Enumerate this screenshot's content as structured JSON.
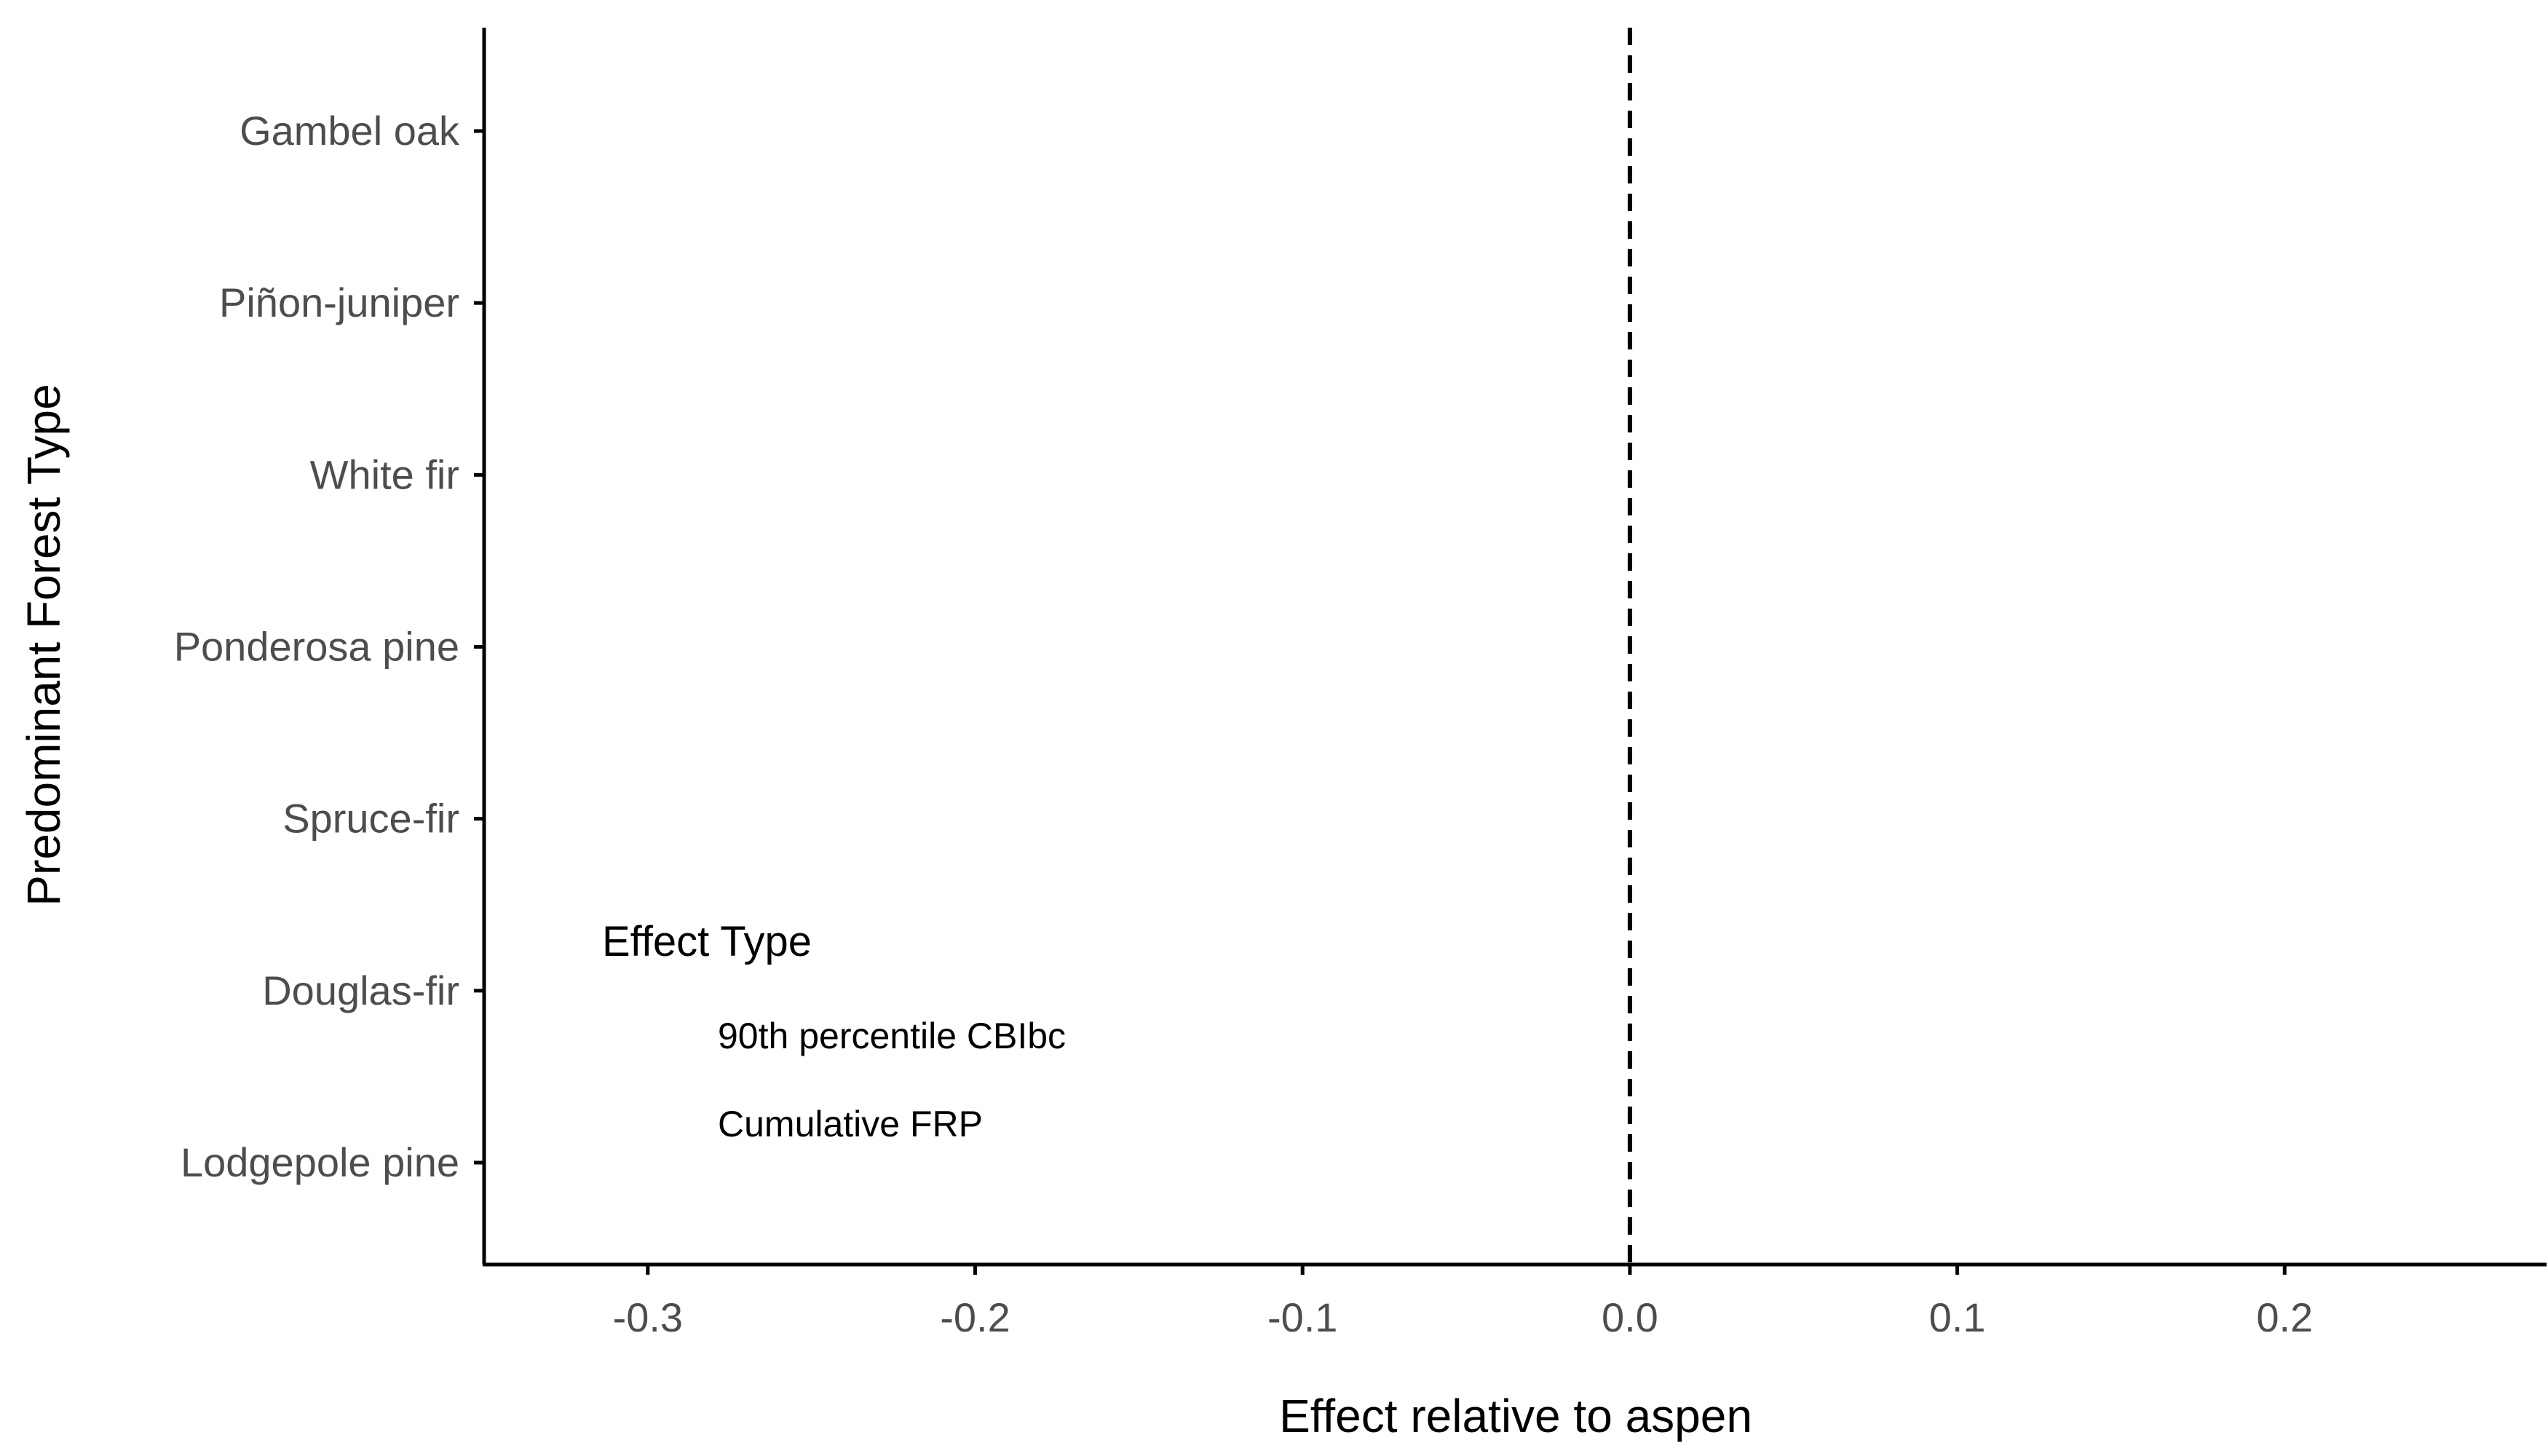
{
  "chart_data": {
    "type": "scatter",
    "orientation": "horizontal",
    "title": "",
    "xlabel": "Effect relative to aspen",
    "ylabel": "Predominant Forest Type",
    "xlim": [
      -0.35,
      0.28
    ],
    "x_ticks": [
      -0.3,
      -0.2,
      -0.1,
      0.0,
      0.1,
      0.2
    ],
    "x_tick_labels": [
      "-0.3",
      "-0.2",
      "-0.1",
      "0.0",
      "0.1",
      "0.2"
    ],
    "categories": [
      "Gambel oak",
      "Piñon-juniper",
      "White fir",
      "Ponderosa pine",
      "Spruce-fir",
      "Douglas-fir",
      "Lodgepole pine"
    ],
    "reference_line": {
      "x": 0.0,
      "style": "dashed",
      "color": "#000000"
    },
    "legend": {
      "title": "Effect Type",
      "placement": "inside-bottom-left",
      "items": [
        "90th percentile CBIbc",
        "Cumulative FRP"
      ]
    },
    "series": [
      {
        "name": "90th percentile CBIbc",
        "values": []
      },
      {
        "name": "Cumulative FRP",
        "values": []
      }
    ],
    "grid": false
  }
}
